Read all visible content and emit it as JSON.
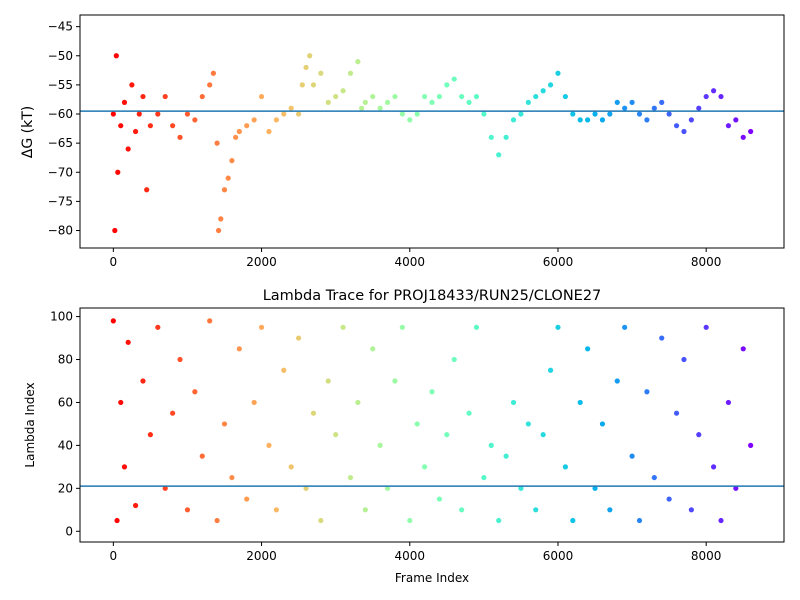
{
  "chart_data": [
    {
      "type": "scatter",
      "title": "",
      "xlabel": "",
      "ylabel": "ΔG (kT)",
      "xlim": [
        -450,
        9050
      ],
      "ylim": [
        -83,
        -43
      ],
      "x_ticks": [
        0,
        2000,
        4000,
        6000,
        8000
      ],
      "x_tick_labels": [
        "0",
        "2000",
        "4000",
        "6000",
        "8000"
      ],
      "y_ticks": [
        -80,
        -75,
        -70,
        -65,
        -60,
        -55,
        -50,
        -45
      ],
      "y_tick_labels": [
        "−80",
        "−75",
        "−70",
        "−65",
        "−60",
        "−55",
        "−50",
        "−45"
      ],
      "hline": -59.5,
      "colormap": "rainbow (reversed: red at start, purple at end)",
      "series": [
        {
          "x": [
            0,
            20,
            40,
            60,
            100,
            150,
            200,
            250,
            300,
            350,
            400,
            450,
            500,
            600,
            700,
            800,
            900,
            1000,
            1100,
            1200,
            1300,
            1350,
            1400,
            1420,
            1450,
            1500,
            1550,
            1600,
            1650,
            1700,
            1800,
            1900,
            2000,
            2100,
            2200,
            2300,
            2400,
            2500,
            2550,
            2600,
            2650,
            2700,
            2800,
            2900,
            3000,
            3100,
            3200,
            3300,
            3350,
            3400,
            3500,
            3600,
            3700,
            3800,
            3900,
            4000,
            4100,
            4200,
            4300,
            4400,
            4500,
            4600,
            4700,
            4800,
            4900,
            5000,
            5100,
            5200,
            5300,
            5400,
            5500,
            5600,
            5700,
            5800,
            5900,
            6000,
            6100,
            6200,
            6300,
            6400,
            6500,
            6600,
            6700,
            6800,
            6900,
            7000,
            7100,
            7200,
            7300,
            7400,
            7500,
            7600,
            7700,
            7800,
            7900,
            8000,
            8100,
            8200,
            8300,
            8400,
            8500,
            8600
          ],
          "y": [
            -60,
            -80,
            -50,
            -70,
            -62,
            -58,
            -66,
            -55,
            -63,
            -60,
            -57,
            -73,
            -62,
            -60,
            -57,
            -62,
            -64,
            -60,
            -61,
            -57,
            -55,
            -53,
            -65,
            -80,
            -78,
            -73,
            -71,
            -68,
            -64,
            -63,
            -62,
            -61,
            -57,
            -63,
            -61,
            -60,
            -59,
            -60,
            -55,
            -52,
            -50,
            -55,
            -53,
            -58,
            -57,
            -56,
            -53,
            -51,
            -59,
            -58,
            -57,
            -59,
            -58,
            -57,
            -60,
            -61,
            -60,
            -57,
            -58,
            -57,
            -55,
            -54,
            -57,
            -58,
            -57,
            -60,
            -64,
            -67,
            -64,
            -61,
            -60,
            -58,
            -57,
            -56,
            -55,
            -53,
            -57,
            -60,
            -61,
            -61,
            -60,
            -61,
            -60,
            -58,
            -59,
            -58,
            -60,
            -61,
            -59,
            -58,
            -60,
            -62,
            -63,
            -61,
            -59,
            -57,
            -56,
            -57,
            -62,
            -61,
            -64,
            -63
          ]
        }
      ]
    },
    {
      "type": "scatter",
      "title": "Lambda Trace for PROJ18433/RUN25/CLONE27",
      "xlabel": "Frame Index",
      "ylabel": "Lambda Index",
      "xlim": [
        -450,
        9050
      ],
      "ylim": [
        -5,
        104
      ],
      "x_ticks": [
        0,
        2000,
        4000,
        6000,
        8000
      ],
      "x_tick_labels": [
        "0",
        "2000",
        "4000",
        "6000",
        "8000"
      ],
      "y_ticks": [
        0,
        20,
        40,
        60,
        80,
        100
      ],
      "y_tick_labels": [
        "0",
        "20",
        "40",
        "60",
        "80",
        "100"
      ],
      "hline": 21,
      "colormap": "rainbow (reversed: red at start, purple at end)",
      "series": [
        {
          "x": [
            0,
            50,
            100,
            150,
            200,
            300,
            400,
            500,
            600,
            700,
            800,
            900,
            1000,
            1100,
            1200,
            1300,
            1400,
            1500,
            1600,
            1700,
            1800,
            1900,
            2000,
            2100,
            2200,
            2300,
            2400,
            2500,
            2600,
            2700,
            2800,
            2900,
            3000,
            3100,
            3200,
            3300,
            3400,
            3500,
            3600,
            3700,
            3800,
            3900,
            4000,
            4100,
            4200,
            4300,
            4400,
            4500,
            4600,
            4700,
            4800,
            4900,
            5000,
            5100,
            5200,
            5300,
            5400,
            5500,
            5600,
            5700,
            5800,
            5900,
            6000,
            6100,
            6200,
            6300,
            6400,
            6500,
            6600,
            6700,
            6800,
            6900,
            7000,
            7100,
            7200,
            7300,
            7400,
            7500,
            7600,
            7700,
            7800,
            7900,
            8000,
            8100,
            8200,
            8300,
            8400,
            8500,
            8600
          ],
          "y": [
            98,
            5,
            60,
            30,
            88,
            12,
            70,
            45,
            95,
            20,
            55,
            80,
            10,
            65,
            35,
            98,
            5,
            50,
            25,
            85,
            15,
            60,
            95,
            40,
            10,
            75,
            30,
            90,
            20,
            55,
            5,
            70,
            45,
            95,
            25,
            60,
            10,
            85,
            40,
            20,
            70,
            95,
            5,
            50,
            30,
            65,
            15,
            45,
            80,
            10,
            55,
            95,
            25,
            40,
            5,
            35,
            60,
            20,
            50,
            10,
            45,
            75,
            95,
            30,
            5,
            60,
            85,
            20,
            50,
            10,
            70,
            95,
            35,
            5,
            65,
            25,
            90,
            15,
            55,
            80,
            10,
            45,
            95,
            30,
            5,
            60,
            20,
            85,
            40
          ]
        }
      ]
    }
  ]
}
